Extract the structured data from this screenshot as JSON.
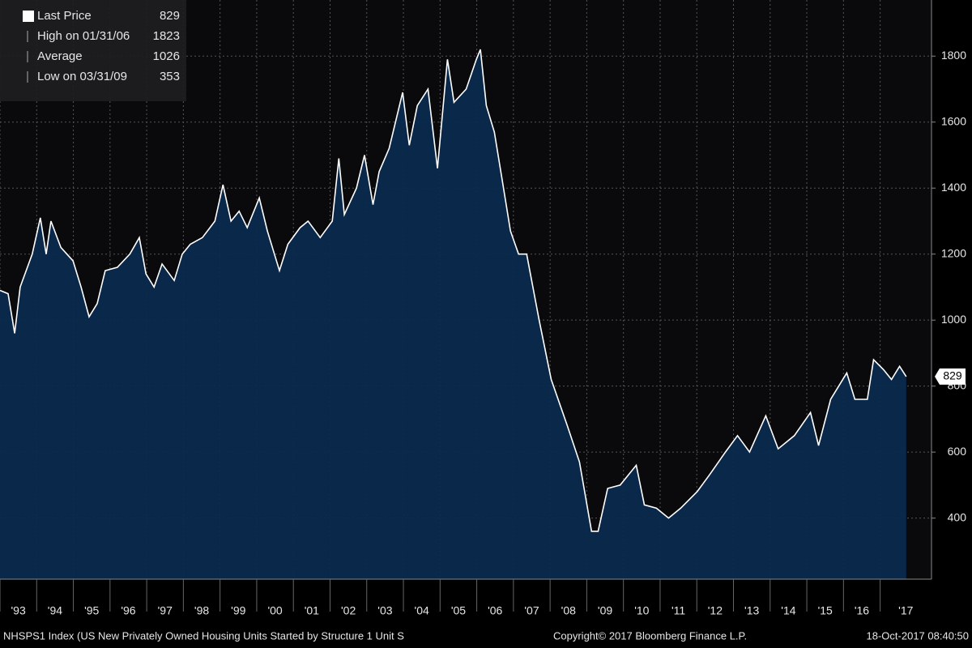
{
  "chart_data": {
    "type": "area",
    "series": [
      {
        "name": "Last Price",
        "color": "#ffffff",
        "fill": "#0b2a4e",
        "values": [
          1090,
          1080,
          960,
          1100,
          1200,
          1310,
          1200,
          1300,
          1220,
          1180,
          1100,
          1010,
          1050,
          1150,
          1160,
          1200,
          1250,
          1140,
          1100,
          1170,
          1120,
          1200,
          1230,
          1250,
          1300,
          1410,
          1300,
          1330,
          1280,
          1370,
          1270,
          1150,
          1230,
          1280,
          1300,
          1250,
          1300,
          1490,
          1320,
          1400,
          1500,
          1350,
          1450,
          1520,
          1690,
          1530,
          1650,
          1700,
          1460,
          1790,
          1660,
          1700,
          1790,
          1820,
          1650,
          1570,
          1420,
          1270,
          1200,
          1200,
          1000,
          820,
          680,
          570,
          360,
          360,
          490,
          500,
          560,
          440,
          430,
          400,
          430,
          480,
          530,
          600,
          650,
          600,
          710,
          610,
          650,
          720,
          620,
          760,
          840,
          760,
          760,
          880,
          850,
          820,
          860,
          829
        ]
      }
    ],
    "x": [
      1993.0,
      1993.22,
      1993.4,
      1993.55,
      1993.88,
      1994.1,
      1994.26,
      1994.39,
      1994.66,
      1994.99,
      1995.21,
      1995.43,
      1995.65,
      1995.87,
      1996.2,
      1996.54,
      1996.8,
      1996.98,
      1997.2,
      1997.42,
      1997.75,
      1997.97,
      1998.19,
      1998.52,
      1998.86,
      1999.08,
      1999.3,
      1999.52,
      1999.74,
      2000.07,
      2000.29,
      2000.62,
      2000.85,
      2001.18,
      2001.4,
      2001.73,
      2002.06,
      2002.24,
      2002.39,
      2002.72,
      2002.94,
      2003.17,
      2003.34,
      2003.61,
      2003.98,
      2004.16,
      2004.38,
      2004.67,
      2004.93,
      2005.2,
      2005.38,
      2005.71,
      2005.99,
      2006.1,
      2006.26,
      2006.48,
      2006.7,
      2006.92,
      2007.14,
      2007.36,
      2007.7,
      2008.03,
      2008.47,
      2008.8,
      2009.13,
      2009.31,
      2009.57,
      2009.91,
      2010.35,
      2010.57,
      2010.9,
      2011.23,
      2011.56,
      2012.01,
      2012.34,
      2012.78,
      2013.11,
      2013.44,
      2013.88,
      2014.22,
      2014.66,
      2015.1,
      2015.32,
      2015.65,
      2016.09,
      2016.31,
      2016.65,
      2016.82,
      2017.09,
      2017.31,
      2017.53,
      2017.71
    ],
    "xlim": [
      1993,
      2018.4
    ],
    "xticks": [
      {
        "value": 1993,
        "label": "'93"
      },
      {
        "value": 1994,
        "label": "'94"
      },
      {
        "value": 1995,
        "label": "'95"
      },
      {
        "value": 1996,
        "label": "'96"
      },
      {
        "value": 1997,
        "label": "'97"
      },
      {
        "value": 1998,
        "label": "'98"
      },
      {
        "value": 1999,
        "label": "'99"
      },
      {
        "value": 2000,
        "label": "'00"
      },
      {
        "value": 2001,
        "label": "'01"
      },
      {
        "value": 2002,
        "label": "'02"
      },
      {
        "value": 2003,
        "label": "'03"
      },
      {
        "value": 2004,
        "label": "'04"
      },
      {
        "value": 2005,
        "label": "'05"
      },
      {
        "value": 2006,
        "label": "'06"
      },
      {
        "value": 2007,
        "label": "'07"
      },
      {
        "value": 2008,
        "label": "'08"
      },
      {
        "value": 2009,
        "label": "'09"
      },
      {
        "value": 2010,
        "label": "'10"
      },
      {
        "value": 2011,
        "label": "'11"
      },
      {
        "value": 2012,
        "label": "'12"
      },
      {
        "value": 2013,
        "label": "'13"
      },
      {
        "value": 2014,
        "label": "'14"
      },
      {
        "value": 2015,
        "label": "'15"
      },
      {
        "value": 2016,
        "label": "'16"
      },
      {
        "value": 2017,
        "label": "'17"
      }
    ],
    "ylim": [
      215,
      1970
    ],
    "yticks": [
      400,
      600,
      800,
      1000,
      1200,
      1400,
      1600,
      1800
    ],
    "grid": true,
    "legend": [
      {
        "label": "Last Price"
      },
      {
        "label": "High on 01/31/06",
        "value": 1823
      },
      {
        "label": "Average",
        "value": 1026
      },
      {
        "label": "Low on 03/31/09",
        "value": 353
      }
    ],
    "footer": {
      "index": "NHSPS1 Index (US New Privately Owned Housing Units Started by Structure 1 Unit S",
      "copyright": "Copyright© 2017 Bloomberg Finance L.P.",
      "timestamp": "18-Oct-2017 08:40:50"
    }
  }
}
